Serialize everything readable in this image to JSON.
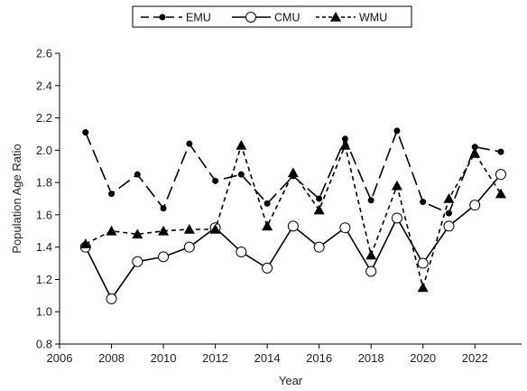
{
  "chart_data": {
    "type": "line",
    "title": "",
    "xlabel": "Year",
    "ylabel": "Population Age Ratio",
    "xlim": [
      2006,
      2023.8
    ],
    "ylim": [
      0.8,
      2.6
    ],
    "xticks": [
      2006,
      2008,
      2010,
      2012,
      2014,
      2016,
      2018,
      2020,
      2022
    ],
    "yticks": [
      0.8,
      1.0,
      1.2,
      1.4,
      1.6,
      1.8,
      2.0,
      2.2,
      2.4,
      2.6
    ],
    "grid": false,
    "legend_position": "top-center",
    "series": [
      {
        "name": "EMU",
        "style": "long-dash",
        "marker": "filled-circle",
        "color": "#000000",
        "x": [
          2007,
          2008,
          2009,
          2010,
          2011,
          2012,
          2013,
          2014,
          2015,
          2016,
          2017,
          2018,
          2019,
          2020,
          2021,
          2022,
          2023
        ],
        "y": [
          2.11,
          1.73,
          1.85,
          1.64,
          2.04,
          1.81,
          1.85,
          1.67,
          1.84,
          1.7,
          2.07,
          1.69,
          2.12,
          1.68,
          1.61,
          2.02,
          1.99
        ]
      },
      {
        "name": "CMU",
        "style": "solid",
        "marker": "open-circle",
        "color": "#000000",
        "x": [
          2007,
          2008,
          2009,
          2010,
          2011,
          2012,
          2013,
          2014,
          2015,
          2016,
          2017,
          2018,
          2019,
          2020,
          2021,
          2022,
          2023
        ],
        "y": [
          1.4,
          1.08,
          1.31,
          1.34,
          1.4,
          1.52,
          1.37,
          1.27,
          1.53,
          1.4,
          1.52,
          1.25,
          1.58,
          1.3,
          1.53,
          1.66,
          1.85
        ]
      },
      {
        "name": "WMU",
        "style": "short-dash",
        "marker": "filled-triangle",
        "color": "#000000",
        "x": [
          2007,
          2008,
          2009,
          2010,
          2011,
          2012,
          2013,
          2014,
          2015,
          2016,
          2017,
          2018,
          2019,
          2020,
          2021,
          2022,
          2023
        ],
        "y": [
          1.42,
          1.5,
          1.48,
          1.5,
          1.51,
          1.51,
          2.03,
          1.53,
          1.86,
          1.63,
          2.03,
          1.35,
          1.78,
          1.15,
          1.7,
          1.98,
          1.73
        ]
      }
    ]
  }
}
